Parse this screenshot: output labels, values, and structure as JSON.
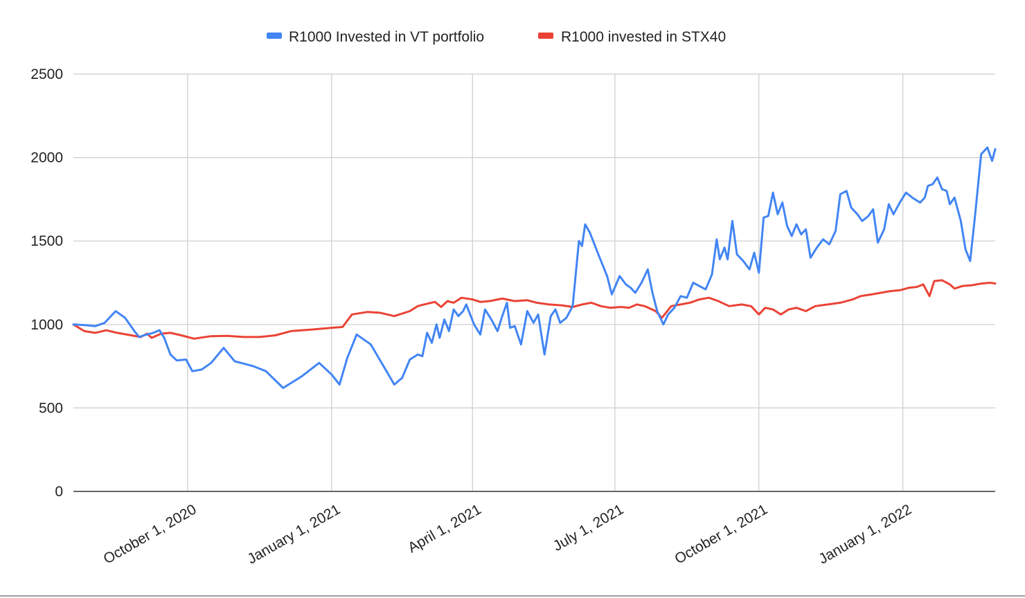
{
  "chart_data": {
    "type": "line",
    "legend_position": "top",
    "grid": true,
    "ylim": [
      0,
      2500
    ],
    "y_ticks": [
      0,
      500,
      1000,
      1500,
      2000,
      2500
    ],
    "x_range": [
      "2020-07-20",
      "2022-03-01"
    ],
    "x_ticks": [
      {
        "date": "2020-10-01",
        "label": "October 1, 2020"
      },
      {
        "date": "2021-01-01",
        "label": "January 1, 2021"
      },
      {
        "date": "2021-04-01",
        "label": "April 1, 2021"
      },
      {
        "date": "2021-07-01",
        "label": "July 1, 2021"
      },
      {
        "date": "2021-10-01",
        "label": "October 1, 2021"
      },
      {
        "date": "2022-01-01",
        "label": "January 1, 2022"
      }
    ],
    "series": [
      {
        "name": "R1000 Invested in VT portfolio",
        "color": "#4285F4",
        "points": [
          [
            "2020-07-20",
            1000
          ],
          [
            "2020-07-29",
            995
          ],
          [
            "2020-08-03",
            990
          ],
          [
            "2020-08-09",
            1010
          ],
          [
            "2020-08-16",
            1080
          ],
          [
            "2020-08-22",
            1040
          ],
          [
            "2020-08-28",
            960
          ],
          [
            "2020-08-31",
            925
          ],
          [
            "2020-09-03",
            935
          ],
          [
            "2020-09-09",
            950
          ],
          [
            "2020-09-13",
            965
          ],
          [
            "2020-09-16",
            920
          ],
          [
            "2020-09-20",
            820
          ],
          [
            "2020-09-24",
            785
          ],
          [
            "2020-09-30",
            790
          ],
          [
            "2020-10-04",
            720
          ],
          [
            "2020-10-10",
            730
          ],
          [
            "2020-10-16",
            770
          ],
          [
            "2020-10-24",
            860
          ],
          [
            "2020-10-31",
            780
          ],
          [
            "2020-11-12",
            750
          ],
          [
            "2020-11-20",
            720
          ],
          [
            "2020-12-01",
            620
          ],
          [
            "2020-12-13",
            690
          ],
          [
            "2020-12-24",
            770
          ],
          [
            "2021-01-01",
            700
          ],
          [
            "2021-01-06",
            640
          ],
          [
            "2021-01-11",
            800
          ],
          [
            "2021-01-17",
            940
          ],
          [
            "2021-01-26",
            880
          ],
          [
            "2021-02-05",
            720
          ],
          [
            "2021-02-10",
            640
          ],
          [
            "2021-02-15",
            680
          ],
          [
            "2021-02-20",
            790
          ],
          [
            "2021-02-25",
            820
          ],
          [
            "2021-02-28",
            810
          ],
          [
            "2021-03-03",
            950
          ],
          [
            "2021-03-06",
            890
          ],
          [
            "2021-03-09",
            1000
          ],
          [
            "2021-03-11",
            920
          ],
          [
            "2021-03-14",
            1030
          ],
          [
            "2021-03-17",
            960
          ],
          [
            "2021-03-20",
            1090
          ],
          [
            "2021-03-23",
            1050
          ],
          [
            "2021-03-26",
            1080
          ],
          [
            "2021-03-28",
            1120
          ],
          [
            "2021-04-02",
            1000
          ],
          [
            "2021-04-06",
            940
          ],
          [
            "2021-04-09",
            1090
          ],
          [
            "2021-04-13",
            1030
          ],
          [
            "2021-04-17",
            960
          ],
          [
            "2021-04-20",
            1050
          ],
          [
            "2021-04-23",
            1130
          ],
          [
            "2021-04-25",
            980
          ],
          [
            "2021-04-28",
            990
          ],
          [
            "2021-05-02",
            880
          ],
          [
            "2021-05-06",
            1080
          ],
          [
            "2021-05-10",
            1010
          ],
          [
            "2021-05-13",
            1060
          ],
          [
            "2021-05-17",
            820
          ],
          [
            "2021-05-21",
            1050
          ],
          [
            "2021-05-24",
            1090
          ],
          [
            "2021-05-27",
            1010
          ],
          [
            "2021-05-31",
            1040
          ],
          [
            "2021-06-04",
            1110
          ],
          [
            "2021-06-08",
            1500
          ],
          [
            "2021-06-10",
            1470
          ],
          [
            "2021-06-12",
            1600
          ],
          [
            "2021-06-15",
            1550
          ],
          [
            "2021-06-20",
            1430
          ],
          [
            "2021-06-26",
            1290
          ],
          [
            "2021-06-29",
            1180
          ],
          [
            "2021-07-04",
            1290
          ],
          [
            "2021-07-08",
            1240
          ],
          [
            "2021-07-11",
            1220
          ],
          [
            "2021-07-14",
            1190
          ],
          [
            "2021-07-18",
            1250
          ],
          [
            "2021-07-22",
            1330
          ],
          [
            "2021-07-25",
            1190
          ],
          [
            "2021-07-28",
            1080
          ],
          [
            "2021-08-01",
            1000
          ],
          [
            "2021-08-04",
            1060
          ],
          [
            "2021-08-08",
            1100
          ],
          [
            "2021-08-12",
            1170
          ],
          [
            "2021-08-16",
            1160
          ],
          [
            "2021-08-20",
            1250
          ],
          [
            "2021-08-24",
            1230
          ],
          [
            "2021-08-28",
            1210
          ],
          [
            "2021-09-01",
            1300
          ],
          [
            "2021-09-04",
            1510
          ],
          [
            "2021-09-06",
            1390
          ],
          [
            "2021-09-09",
            1460
          ],
          [
            "2021-09-11",
            1390
          ],
          [
            "2021-09-14",
            1620
          ],
          [
            "2021-09-17",
            1420
          ],
          [
            "2021-09-21",
            1380
          ],
          [
            "2021-09-25",
            1330
          ],
          [
            "2021-09-28",
            1430
          ],
          [
            "2021-10-01",
            1310
          ],
          [
            "2021-10-04",
            1640
          ],
          [
            "2021-10-07",
            1650
          ],
          [
            "2021-10-10",
            1790
          ],
          [
            "2021-10-13",
            1660
          ],
          [
            "2021-10-16",
            1730
          ],
          [
            "2021-10-19",
            1590
          ],
          [
            "2021-10-22",
            1530
          ],
          [
            "2021-10-25",
            1600
          ],
          [
            "2021-10-28",
            1540
          ],
          [
            "2021-10-31",
            1570
          ],
          [
            "2021-11-03",
            1400
          ],
          [
            "2021-11-07",
            1460
          ],
          [
            "2021-11-11",
            1510
          ],
          [
            "2021-11-15",
            1480
          ],
          [
            "2021-11-19",
            1560
          ],
          [
            "2021-11-22",
            1780
          ],
          [
            "2021-11-26",
            1800
          ],
          [
            "2021-11-29",
            1700
          ],
          [
            "2021-12-03",
            1660
          ],
          [
            "2021-12-06",
            1620
          ],
          [
            "2021-12-10",
            1650
          ],
          [
            "2021-12-13",
            1690
          ],
          [
            "2021-12-16",
            1490
          ],
          [
            "2021-12-20",
            1570
          ],
          [
            "2021-12-23",
            1720
          ],
          [
            "2021-12-26",
            1660
          ],
          [
            "2021-12-30",
            1730
          ],
          [
            "2022-01-03",
            1790
          ],
          [
            "2022-01-07",
            1760
          ],
          [
            "2022-01-12",
            1730
          ],
          [
            "2022-01-15",
            1760
          ],
          [
            "2022-01-17",
            1830
          ],
          [
            "2022-01-20",
            1840
          ],
          [
            "2022-01-23",
            1880
          ],
          [
            "2022-01-26",
            1810
          ],
          [
            "2022-01-29",
            1800
          ],
          [
            "2022-01-31",
            1720
          ],
          [
            "2022-02-03",
            1760
          ],
          [
            "2022-02-07",
            1620
          ],
          [
            "2022-02-10",
            1450
          ],
          [
            "2022-02-13",
            1380
          ],
          [
            "2022-02-16",
            1640
          ],
          [
            "2022-02-20",
            2020
          ],
          [
            "2022-02-24",
            2060
          ],
          [
            "2022-02-27",
            1980
          ],
          [
            "2022-03-01",
            2050
          ]
        ]
      },
      {
        "name": "R1000 invested in STX40",
        "color": "#EA4335",
        "points": [
          [
            "2020-07-20",
            1000
          ],
          [
            "2020-07-27",
            960
          ],
          [
            "2020-08-03",
            950
          ],
          [
            "2020-08-10",
            965
          ],
          [
            "2020-08-17",
            950
          ],
          [
            "2020-08-26",
            935
          ],
          [
            "2020-09-01",
            925
          ],
          [
            "2020-09-05",
            945
          ],
          [
            "2020-09-08",
            920
          ],
          [
            "2020-09-14",
            945
          ],
          [
            "2020-09-20",
            950
          ],
          [
            "2020-09-27",
            935
          ],
          [
            "2020-10-05",
            915
          ],
          [
            "2020-10-16",
            930
          ],
          [
            "2020-10-26",
            932
          ],
          [
            "2020-11-06",
            925
          ],
          [
            "2020-11-16",
            925
          ],
          [
            "2020-11-26",
            935
          ],
          [
            "2020-12-06",
            960
          ],
          [
            "2020-12-20",
            970
          ],
          [
            "2021-01-01",
            980
          ],
          [
            "2021-01-08",
            985
          ],
          [
            "2021-01-14",
            1060
          ],
          [
            "2021-01-24",
            1075
          ],
          [
            "2021-02-01",
            1070
          ],
          [
            "2021-02-10",
            1050
          ],
          [
            "2021-02-20",
            1080
          ],
          [
            "2021-02-25",
            1110
          ],
          [
            "2021-03-01",
            1120
          ],
          [
            "2021-03-08",
            1135
          ],
          [
            "2021-03-12",
            1105
          ],
          [
            "2021-03-16",
            1140
          ],
          [
            "2021-03-20",
            1130
          ],
          [
            "2021-03-25",
            1160
          ],
          [
            "2021-04-01",
            1150
          ],
          [
            "2021-04-06",
            1135
          ],
          [
            "2021-04-12",
            1140
          ],
          [
            "2021-04-20",
            1155
          ],
          [
            "2021-04-28",
            1140
          ],
          [
            "2021-05-06",
            1145
          ],
          [
            "2021-05-12",
            1130
          ],
          [
            "2021-05-20",
            1120
          ],
          [
            "2021-05-28",
            1115
          ],
          [
            "2021-06-04",
            1105
          ],
          [
            "2021-06-10",
            1120
          ],
          [
            "2021-06-16",
            1130
          ],
          [
            "2021-06-22",
            1110
          ],
          [
            "2021-06-28",
            1100
          ],
          [
            "2021-07-05",
            1105
          ],
          [
            "2021-07-10",
            1100
          ],
          [
            "2021-07-15",
            1120
          ],
          [
            "2021-07-20",
            1110
          ],
          [
            "2021-07-27",
            1080
          ],
          [
            "2021-07-31",
            1040
          ],
          [
            "2021-08-06",
            1110
          ],
          [
            "2021-08-12",
            1120
          ],
          [
            "2021-08-18",
            1130
          ],
          [
            "2021-08-24",
            1150
          ],
          [
            "2021-08-30",
            1160
          ],
          [
            "2021-09-05",
            1140
          ],
          [
            "2021-09-12",
            1110
          ],
          [
            "2021-09-20",
            1120
          ],
          [
            "2021-09-26",
            1110
          ],
          [
            "2021-10-01",
            1060
          ],
          [
            "2021-10-05",
            1100
          ],
          [
            "2021-10-10",
            1090
          ],
          [
            "2021-10-15",
            1060
          ],
          [
            "2021-10-20",
            1090
          ],
          [
            "2021-10-25",
            1100
          ],
          [
            "2021-10-31",
            1080
          ],
          [
            "2021-11-06",
            1110
          ],
          [
            "2021-11-14",
            1120
          ],
          [
            "2021-11-22",
            1130
          ],
          [
            "2021-11-30",
            1150
          ],
          [
            "2021-12-05",
            1170
          ],
          [
            "2021-12-12",
            1180
          ],
          [
            "2021-12-18",
            1190
          ],
          [
            "2021-12-24",
            1200
          ],
          [
            "2021-12-30",
            1205
          ],
          [
            "2022-01-05",
            1220
          ],
          [
            "2022-01-10",
            1225
          ],
          [
            "2022-01-14",
            1240
          ],
          [
            "2022-01-18",
            1170
          ],
          [
            "2022-01-21",
            1260
          ],
          [
            "2022-01-26",
            1265
          ],
          [
            "2022-01-31",
            1240
          ],
          [
            "2022-02-03",
            1215
          ],
          [
            "2022-02-08",
            1230
          ],
          [
            "2022-02-14",
            1235
          ],
          [
            "2022-02-20",
            1245
          ],
          [
            "2022-02-26",
            1250
          ],
          [
            "2022-03-01",
            1245
          ]
        ]
      }
    ]
  }
}
